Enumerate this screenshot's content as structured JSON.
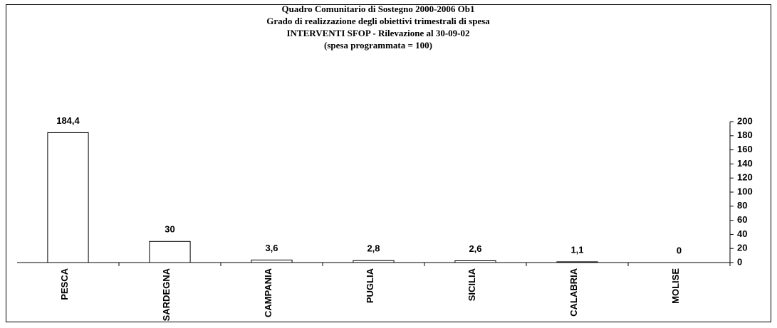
{
  "chart_data": {
    "type": "bar",
    "title": [
      "Quadro Comunitario di Sostegno 2000-2006 Ob1",
      "Grado di realizzazione degli obiettivi trimestrali di spesa",
      "INTERVENTI SFOP - Rilevazione al 30-09-02",
      "(spesa programmata = 100)"
    ],
    "categories": [
      "PESCA",
      "SARDEGNA",
      "CAMPANIA",
      "PUGLIA",
      "SICILIA",
      "CALABRIA",
      "MOLISE"
    ],
    "values": [
      184.4,
      30,
      3.6,
      2.8,
      2.6,
      1.1,
      0
    ],
    "value_labels": [
      "184,4",
      "30",
      "3,6",
      "2,8",
      "2,6",
      "1,1",
      "0"
    ],
    "color": "#ffffff",
    "ylim": [
      0,
      200
    ],
    "yticks": [
      0,
      20,
      40,
      60,
      80,
      100,
      120,
      140,
      160,
      180,
      200
    ],
    "y_axis_side": "right",
    "grid": false
  }
}
